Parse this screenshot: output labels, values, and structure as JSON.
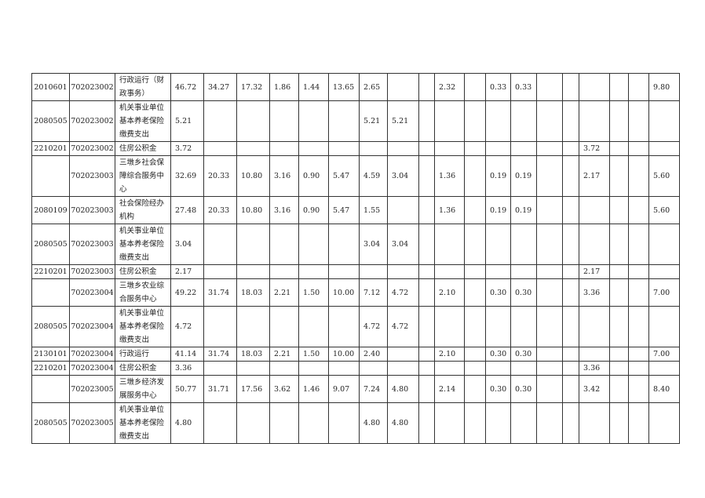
{
  "table": {
    "rows": [
      [
        "2010601",
        "702023002",
        "行政运行（财政事务）",
        "46.72",
        "34.27",
        "17.32",
        "1.86",
        "1.44",
        "13.65",
        "2.65",
        "",
        "",
        "2.32",
        "",
        "0.33",
        "0.33",
        "",
        "",
        "",
        "",
        "",
        "9.80"
      ],
      [
        "2080505",
        "702023002",
        "机关事业单位基本养老保险缴费支出",
        "5.21",
        "",
        "",
        "",
        "",
        "",
        "5.21",
        "5.21",
        "",
        "",
        "",
        "",
        "",
        "",
        "",
        "",
        "",
        "",
        ""
      ],
      [
        "2210201",
        "702023002",
        "住房公积金",
        "3.72",
        "",
        "",
        "",
        "",
        "",
        "",
        "",
        "",
        "",
        "",
        "",
        "",
        "",
        "",
        "3.72",
        "",
        "",
        ""
      ],
      [
        "",
        "702023003",
        "三墩乡社会保障综合服务中心",
        "32.69",
        "20.33",
        "10.80",
        "3.16",
        "0.90",
        "5.47",
        "4.59",
        "3.04",
        "",
        "1.36",
        "",
        "0.19",
        "0.19",
        "",
        "",
        "2.17",
        "",
        "",
        "5.60"
      ],
      [
        "2080109",
        "702023003",
        "社会保险经办机构",
        "27.48",
        "20.33",
        "10.80",
        "3.16",
        "0.90",
        "5.47",
        "1.55",
        "",
        "",
        "1.36",
        "",
        "0.19",
        "0.19",
        "",
        "",
        "",
        "",
        "",
        "5.60"
      ],
      [
        "2080505",
        "702023003",
        "机关事业单位基本养老保险缴费支出",
        "3.04",
        "",
        "",
        "",
        "",
        "",
        "3.04",
        "3.04",
        "",
        "",
        "",
        "",
        "",
        "",
        "",
        "",
        "",
        "",
        ""
      ],
      [
        "2210201",
        "702023003",
        "住房公积金",
        "2.17",
        "",
        "",
        "",
        "",
        "",
        "",
        "",
        "",
        "",
        "",
        "",
        "",
        "",
        "",
        "2.17",
        "",
        "",
        ""
      ],
      [
        "",
        "702023004",
        "三墩乡农业综合服务中心",
        "49.22",
        "31.74",
        "18.03",
        "2.21",
        "1.50",
        "10.00",
        "7.12",
        "4.72",
        "",
        "2.10",
        "",
        "0.30",
        "0.30",
        "",
        "",
        "3.36",
        "",
        "",
        "7.00"
      ],
      [
        "2080505",
        "702023004",
        "机关事业单位基本养老保险缴费支出",
        "4.72",
        "",
        "",
        "",
        "",
        "",
        "4.72",
        "4.72",
        "",
        "",
        "",
        "",
        "",
        "",
        "",
        "",
        "",
        "",
        ""
      ],
      [
        "2130101",
        "702023004",
        "行政运行",
        "41.14",
        "31.74",
        "18.03",
        "2.21",
        "1.50",
        "10.00",
        "2.40",
        "",
        "",
        "2.10",
        "",
        "0.30",
        "0.30",
        "",
        "",
        "",
        "",
        "",
        "7.00"
      ],
      [
        "2210201",
        "702023004",
        "住房公积金",
        "3.36",
        "",
        "",
        "",
        "",
        "",
        "",
        "",
        "",
        "",
        "",
        "",
        "",
        "",
        "",
        "3.36",
        "",
        "",
        ""
      ],
      [
        "",
        "702023005",
        "三墩乡经济发展服务中心",
        "50.77",
        "31.71",
        "17.56",
        "3.62",
        "1.46",
        "9.07",
        "7.24",
        "4.80",
        "",
        "2.14",
        "",
        "0.30",
        "0.30",
        "",
        "",
        "3.42",
        "",
        "",
        "8.40"
      ],
      [
        "2080505",
        "702023005",
        "机关事业单位基本养老保险缴费支出",
        "4.80",
        "",
        "",
        "",
        "",
        "",
        "4.80",
        "4.80",
        "",
        "",
        "",
        "",
        "",
        "",
        "",
        "",
        "",
        "",
        ""
      ]
    ]
  }
}
